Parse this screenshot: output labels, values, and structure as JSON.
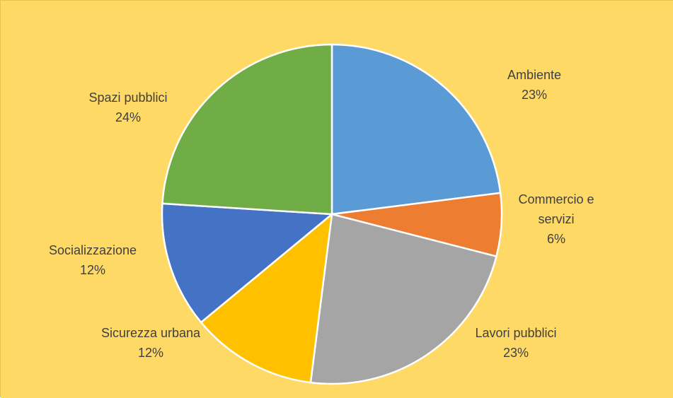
{
  "colors": {
    "background": "#ffd966"
  },
  "chart_data": {
    "type": "pie",
    "start_angle_deg": 0,
    "direction": "clockwise",
    "slices": [
      {
        "label": [
          "Ambiente"
        ],
        "percent_label": "23%",
        "value": 23,
        "color": "#5b9bd5"
      },
      {
        "label": [
          "Commercio e",
          "servizi"
        ],
        "percent_label": "6%",
        "value": 6,
        "color": "#ed7d31"
      },
      {
        "label": [
          "Lavori pubblici"
        ],
        "percent_label": "23%",
        "value": 23,
        "color": "#a5a5a5"
      },
      {
        "label": [
          "Sicurezza urbana"
        ],
        "percent_label": "12%",
        "value": 12,
        "color": "#ffc000"
      },
      {
        "label": [
          "Socializzazione"
        ],
        "percent_label": "12%",
        "value": 12,
        "color": "#4472c4"
      },
      {
        "label": [
          "Spazi pubblici"
        ],
        "percent_label": "24%",
        "value": 24,
        "color": "#70ad47"
      }
    ]
  }
}
